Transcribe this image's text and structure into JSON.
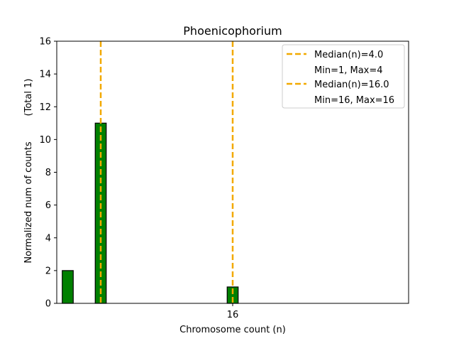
{
  "chart_data": {
    "type": "bar",
    "title": "Phoenicophorium",
    "xlabel": "Chromosome count (n)",
    "ylabel": "Normalized num of counts",
    "ylabel_sub": "(Total 1)",
    "xlim": [
      0,
      32
    ],
    "ylim": [
      0,
      16
    ],
    "yticks": [
      0,
      2,
      4,
      6,
      8,
      10,
      12,
      14,
      16
    ],
    "xticks": [
      16
    ],
    "bar_width": 1,
    "bars": [
      {
        "x": 1,
        "value": 2
      },
      {
        "x": 4,
        "value": 11
      },
      {
        "x": 16,
        "value": 1
      }
    ],
    "baseline_segment": [
      0.5,
      7.5
    ],
    "medians": [
      {
        "x": 4.0,
        "label": "Median(n)=4.0",
        "range_label": "Min=1, Max=4"
      },
      {
        "x": 16.0,
        "label": "Median(n)=16.0",
        "range_label": "Min=16, Max=16"
      }
    ],
    "legend_position": "top-right",
    "grid": false,
    "colors": {
      "bar": "#008000",
      "bar_edge": "#000000",
      "median": "#f2a900"
    }
  }
}
